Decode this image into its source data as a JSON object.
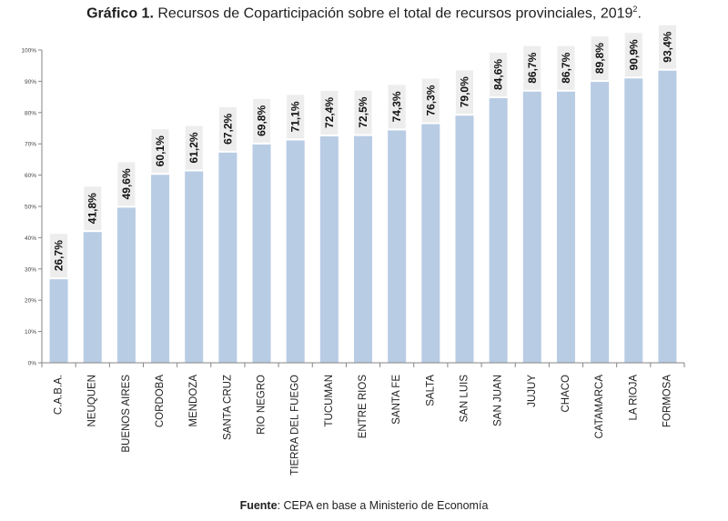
{
  "title": {
    "prefix": "Gráfico 1.",
    "text": "Recursos de Coparticipación sobre el total de recursos provinciales, 2019",
    "footnote": "2",
    "suffix": "."
  },
  "source": {
    "label": "Fuente",
    "text": ": CEPA en base a Ministerio de Economía"
  },
  "colors": {
    "bar": "#b8cce4",
    "label_bg": "#ededed",
    "axis": "#868686",
    "text": "#222222"
  },
  "chart_data": {
    "type": "bar",
    "title": "Recursos de Coparticipación sobre el total de recursos provinciales, 2019",
    "xlabel": "",
    "ylabel": "",
    "ylim": [
      0,
      100
    ],
    "yticks": [
      "0%",
      "10%",
      "20%",
      "30%",
      "40%",
      "50%",
      "60%",
      "70%",
      "80%",
      "90%",
      "100%"
    ],
    "grid": false,
    "categories": [
      "C.A.B.A.",
      "NEUQUEN",
      "BUENOS AIRES",
      "CORDOBA",
      "MENDOZA",
      "SANTA CRUZ",
      "RIO NEGRO",
      "TIERRA DEL FUEGO",
      "TUCUMAN",
      "ENTRE RIOS",
      "SANTA FE",
      "SALTA",
      "SAN LUIS",
      "SAN JUAN",
      "JUJUY",
      "CHACO",
      "CATAMARCA",
      "LA RIOJA",
      "FORMOSA"
    ],
    "values": [
      26.7,
      41.8,
      49.6,
      60.1,
      61.2,
      67.2,
      69.8,
      71.1,
      72.4,
      72.5,
      74.3,
      76.3,
      79.0,
      84.6,
      86.7,
      86.7,
      89.8,
      90.9,
      93.4
    ],
    "data_labels": [
      "26,7%",
      "41,8%",
      "49,6%",
      "60,1%",
      "61,2%",
      "67,2%",
      "69,8%",
      "71,1%",
      "72,4%",
      "72,5%",
      "74,3%",
      "76,3%",
      "79,0%",
      "84,6%",
      "86,7%",
      "86,7%",
      "89,8%",
      "90,9%",
      "93,4%"
    ]
  }
}
